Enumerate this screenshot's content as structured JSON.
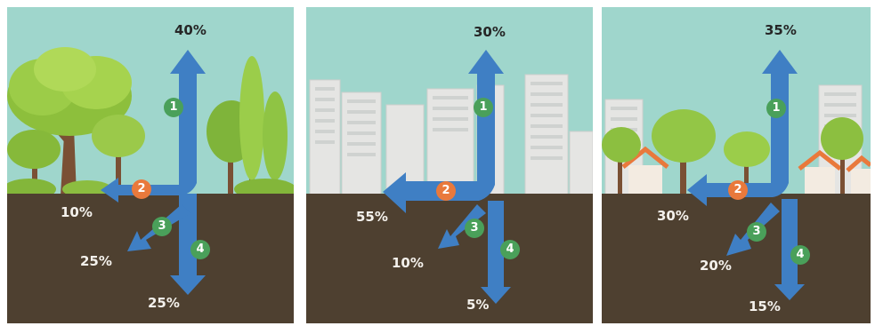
{
  "colors": {
    "sky": "#9fd6cc",
    "soil": "#4e4030",
    "arrow": "#3f7fc4",
    "badge_green": "#4aa05a",
    "badge_orange": "#e9793c"
  },
  "panels": [
    {
      "scene": "forest",
      "labels": {
        "up": "40%",
        "side": "10%",
        "diag": "25%",
        "down": "25%"
      },
      "badges": [
        "1",
        "2",
        "3",
        "4"
      ]
    },
    {
      "scene": "city",
      "labels": {
        "up": "30%",
        "side": "55%",
        "diag": "10%",
        "down": "5%"
      },
      "badges": [
        "1",
        "2",
        "3",
        "4"
      ]
    },
    {
      "scene": "suburb",
      "labels": {
        "up": "35%",
        "side": "30%",
        "diag": "20%",
        "down": "15%"
      },
      "badges": [
        "1",
        "2",
        "3",
        "4"
      ]
    }
  ]
}
